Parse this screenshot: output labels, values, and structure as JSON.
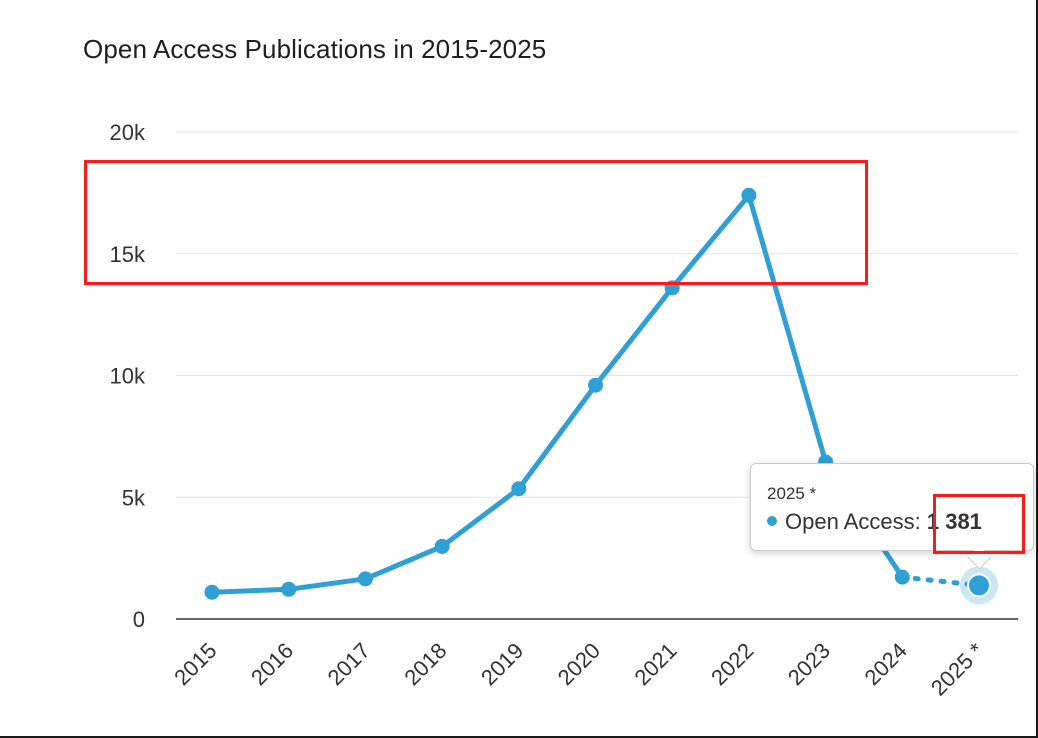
{
  "chart_data": {
    "type": "line",
    "title": "Open Access Publications in 2015-2025",
    "categories": [
      "2015",
      "2016",
      "2017",
      "2018",
      "2019",
      "2020",
      "2021",
      "2022",
      "2023",
      "2024",
      "2025 *"
    ],
    "series": [
      {
        "name": "Open Access",
        "color": "#2f9fd4",
        "values": [
          1100,
          1220,
          1650,
          2980,
          5350,
          9600,
          13600,
          17400,
          6450,
          1720,
          1381
        ],
        "projected_last_segment": true
      }
    ],
    "y_ticks": [
      0,
      5000,
      10000,
      15000,
      20000
    ],
    "y_tick_labels": [
      "0",
      "5k",
      "10k",
      "15k",
      "20k"
    ],
    "ylim": [
      0,
      20000
    ],
    "grid": true,
    "xlabel": "",
    "ylabel": ""
  },
  "tooltip": {
    "header": "2025 *",
    "series_label": "Open Access: ",
    "value_label": "1 381"
  }
}
